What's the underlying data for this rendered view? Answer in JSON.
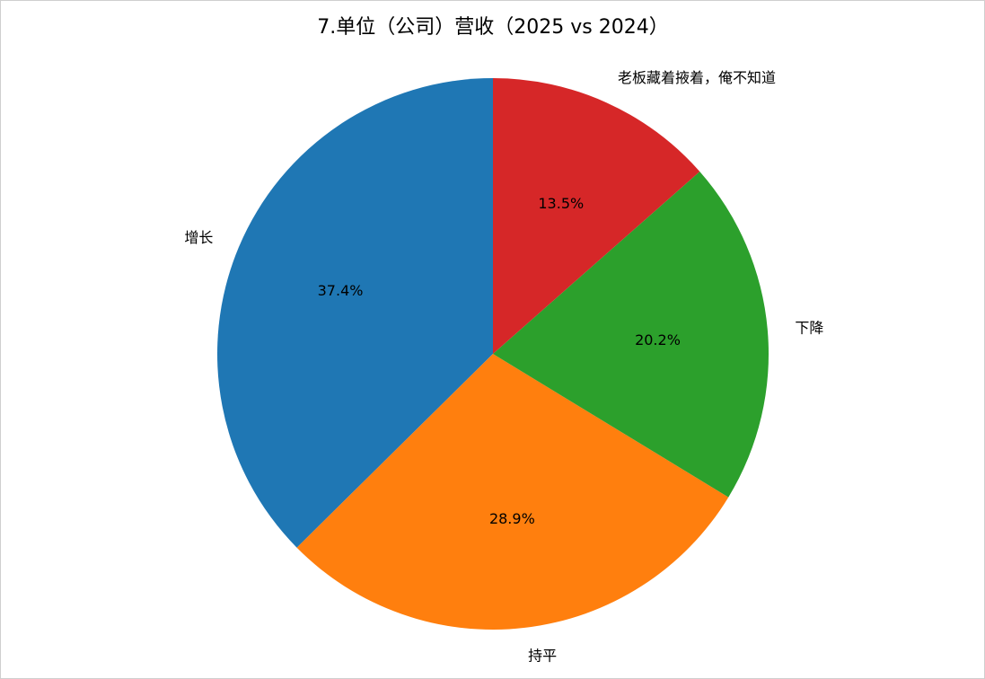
{
  "chart_data": {
    "type": "pie",
    "title": "7.单位（公司）营收（2025 vs 2024）",
    "categories": [
      "增长",
      "持平",
      "下降",
      "老板藏着掖着，俺不知道"
    ],
    "values": [
      37.4,
      28.9,
      20.2,
      13.5
    ],
    "pct_labels": [
      "37.4%",
      "28.9%",
      "20.2%",
      "13.5%"
    ],
    "colors": [
      "#1f77b4",
      "#ff7f0e",
      "#2ca02c",
      "#d62728"
    ],
    "start_angle": 90,
    "direction": "counterclockwise"
  }
}
